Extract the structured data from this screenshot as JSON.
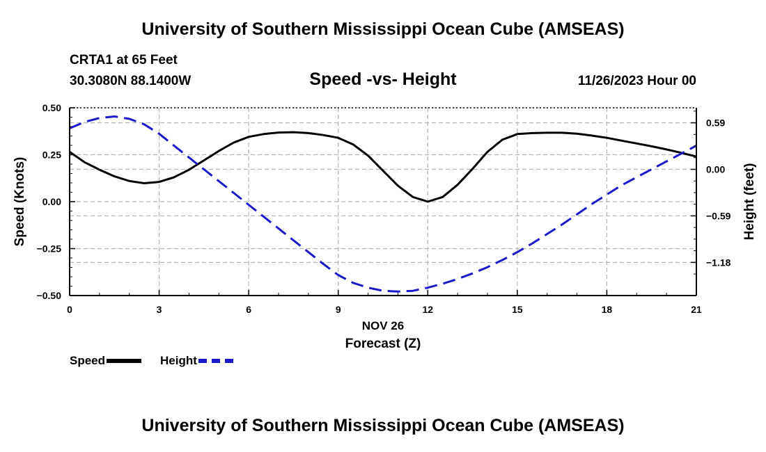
{
  "header": {
    "title": "University of Southern Mississippi Ocean Cube (AMSEAS)",
    "station": "CRTA1 at 65 Feet",
    "coords": "30.3080N  88.1400W",
    "subtitle": "Speed -vs- Height",
    "datetime": "11/26/2023 Hour 00"
  },
  "footer": {
    "title": "University of Southern Mississippi Ocean Cube (AMSEAS)"
  },
  "legend": {
    "speed_label": "Speed",
    "height_label": "Height"
  },
  "colors": {
    "speed": "#000000",
    "height": "#1a1acc",
    "grid": "#b4b4b4"
  },
  "chart_data": {
    "type": "line",
    "title": "Speed -vs- Height",
    "xlabel_date": "NOV 26",
    "xlabel": "Forecast (Z)",
    "ylabel_left": "Speed (Knots)",
    "ylabel_right": "Height (feet)",
    "xlim": [
      0,
      21
    ],
    "ylim_left": [
      -0.5,
      0.5
    ],
    "ylim_right": [
      -1.6,
      0.78
    ],
    "x_ticks": [
      0,
      3,
      6,
      9,
      12,
      15,
      18,
      21
    ],
    "x_tick_labels": [
      "0",
      "3",
      "6",
      "9",
      "12",
      "15",
      "18",
      "21"
    ],
    "y_left_ticks": [
      0.5,
      0.25,
      0.0,
      -0.25,
      -0.5
    ],
    "y_left_tick_labels": [
      "0.50",
      "0.25",
      "0.00",
      "−0.25",
      "−0.50"
    ],
    "y_right_ticks": [
      0.59,
      0.0,
      -0.59,
      -1.18
    ],
    "y_right_tick_labels": [
      "0.59",
      "0.00",
      "−0.59",
      "−1.18"
    ],
    "grid": true,
    "series": [
      {
        "name": "Speed",
        "axis": "left",
        "style": "solid",
        "x": [
          0,
          0.5,
          1,
          1.5,
          2,
          2.5,
          3,
          3.5,
          4,
          4.5,
          5,
          5.5,
          6,
          6.5,
          7,
          7.5,
          8,
          8.5,
          9,
          9.5,
          10,
          10.5,
          11,
          11.5,
          12,
          12.5,
          13,
          13.5,
          14,
          14.5,
          15,
          15.5,
          16,
          16.5,
          17,
          17.5,
          18,
          18.5,
          19,
          19.5,
          20,
          20.5,
          21
        ],
        "values": [
          0.265,
          0.21,
          0.17,
          0.135,
          0.11,
          0.098,
          0.105,
          0.13,
          0.17,
          0.22,
          0.27,
          0.315,
          0.345,
          0.36,
          0.368,
          0.37,
          0.365,
          0.355,
          0.34,
          0.305,
          0.245,
          0.165,
          0.085,
          0.025,
          0.0,
          0.025,
          0.09,
          0.175,
          0.265,
          0.33,
          0.36,
          0.365,
          0.367,
          0.367,
          0.362,
          0.352,
          0.34,
          0.325,
          0.31,
          0.295,
          0.278,
          0.26,
          0.24
        ]
      },
      {
        "name": "Height",
        "axis": "right",
        "style": "dashed",
        "x": [
          0,
          0.5,
          1,
          1.5,
          2,
          2.5,
          3,
          3.5,
          4,
          4.5,
          5,
          5.5,
          6,
          6.5,
          7,
          7.5,
          8,
          8.5,
          9,
          9.5,
          10,
          10.5,
          11,
          11.5,
          12,
          12.5,
          13,
          13.5,
          14,
          14.5,
          15,
          15.5,
          16,
          16.5,
          17,
          17.5,
          18,
          18.5,
          19,
          19.5,
          20,
          20.5,
          21
        ],
        "values": [
          0.52,
          0.6,
          0.65,
          0.67,
          0.64,
          0.57,
          0.45,
          0.3,
          0.15,
          0.0,
          -0.15,
          -0.3,
          -0.45,
          -0.6,
          -0.75,
          -0.9,
          -1.05,
          -1.2,
          -1.34,
          -1.44,
          -1.5,
          -1.54,
          -1.55,
          -1.54,
          -1.5,
          -1.45,
          -1.39,
          -1.32,
          -1.24,
          -1.15,
          -1.05,
          -0.94,
          -0.82,
          -0.7,
          -0.57,
          -0.44,
          -0.32,
          -0.2,
          -0.1,
          0.0,
          0.1,
          0.2,
          0.3
        ]
      }
    ]
  }
}
